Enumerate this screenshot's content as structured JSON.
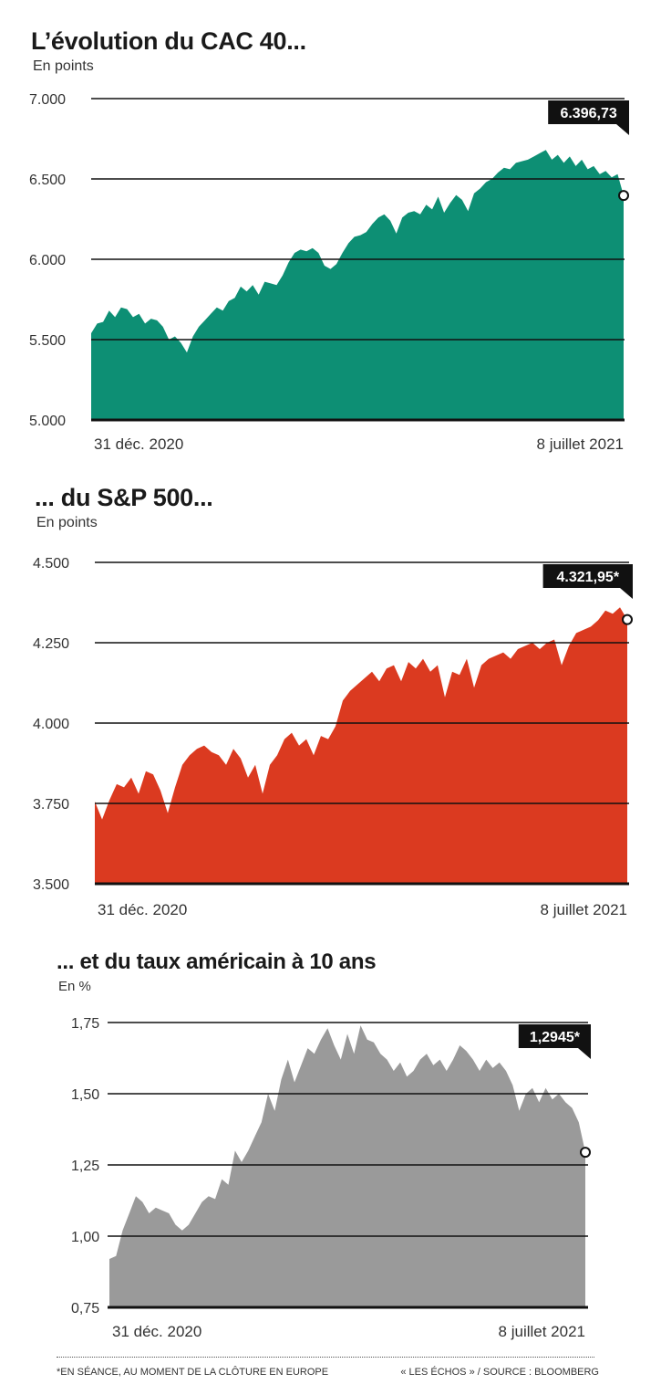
{
  "chart_data": [
    {
      "type": "area",
      "title": "L’évolution du CAC 40...",
      "subtitle": "En points",
      "yticks": [
        "7.000",
        "6.500",
        "6.000",
        "5.500",
        "5.000"
      ],
      "ytick_values": [
        7000,
        6500,
        6000,
        5500,
        5000
      ],
      "ylim": [
        5000,
        7000
      ],
      "x_start_label": "31 déc. 2020",
      "x_end_label": "8 juillet 2021",
      "last_value_label": "6.396,73",
      "last_value": 6396.73,
      "color": "#0d8f74",
      "values": [
        5540,
        5600,
        5610,
        5680,
        5640,
        5700,
        5690,
        5640,
        5660,
        5600,
        5630,
        5620,
        5580,
        5500,
        5520,
        5480,
        5420,
        5520,
        5580,
        5620,
        5660,
        5700,
        5680,
        5740,
        5760,
        5830,
        5800,
        5840,
        5780,
        5860,
        5850,
        5840,
        5900,
        5980,
        6040,
        6060,
        6050,
        6070,
        6040,
        5960,
        5940,
        5970,
        6040,
        6100,
        6140,
        6150,
        6170,
        6220,
        6260,
        6280,
        6240,
        6160,
        6260,
        6290,
        6300,
        6280,
        6340,
        6310,
        6390,
        6290,
        6350,
        6400,
        6370,
        6300,
        6410,
        6440,
        6480,
        6500,
        6540,
        6570,
        6560,
        6600,
        6610,
        6620,
        6640,
        6660,
        6680,
        6620,
        6650,
        6600,
        6640,
        6580,
        6620,
        6560,
        6580,
        6530,
        6550,
        6510,
        6530,
        6396.73
      ]
    },
    {
      "type": "area",
      "title": "... du S&P 500...",
      "subtitle": "En points",
      "yticks": [
        "4.500",
        "4.250",
        "4.000",
        "3.750",
        "3.500"
      ],
      "ytick_values": [
        4500,
        4250,
        4000,
        3750,
        3500
      ],
      "ylim": [
        3500,
        4500
      ],
      "x_start_label": "31 déc. 2020",
      "x_end_label": "8 juillet 2021",
      "last_value_label": "4.321,95*",
      "last_value": 4321.95,
      "color": "#db3a20",
      "values": [
        3756,
        3700,
        3760,
        3810,
        3800,
        3830,
        3780,
        3850,
        3840,
        3790,
        3720,
        3800,
        3870,
        3900,
        3920,
        3930,
        3910,
        3900,
        3870,
        3920,
        3890,
        3830,
        3870,
        3780,
        3870,
        3900,
        3950,
        3970,
        3930,
        3950,
        3900,
        3960,
        3950,
        3990,
        4070,
        4100,
        4120,
        4140,
        4160,
        4130,
        4170,
        4180,
        4130,
        4190,
        4170,
        4200,
        4160,
        4180,
        4080,
        4160,
        4150,
        4200,
        4110,
        4180,
        4200,
        4210,
        4220,
        4200,
        4230,
        4240,
        4250,
        4230,
        4250,
        4260,
        4180,
        4240,
        4280,
        4290,
        4300,
        4320,
        4350,
        4340,
        4360,
        4321.95
      ]
    },
    {
      "type": "area",
      "title": "... et du taux américain à 10 ans",
      "subtitle": "En %",
      "yticks": [
        "1,75",
        "1,50",
        "1,25",
        "1,00",
        "0,75"
      ],
      "ytick_values": [
        1.75,
        1.5,
        1.25,
        1.0,
        0.75
      ],
      "ylim": [
        0.75,
        1.75
      ],
      "x_start_label": "31 déc. 2020",
      "x_end_label": "8 juillet 2021",
      "last_value_label": "1,2945*",
      "last_value": 1.2945,
      "color": "#9a9a9a",
      "values": [
        0.92,
        0.93,
        1.02,
        1.08,
        1.14,
        1.12,
        1.08,
        1.1,
        1.09,
        1.08,
        1.04,
        1.02,
        1.04,
        1.08,
        1.12,
        1.14,
        1.13,
        1.2,
        1.18,
        1.3,
        1.26,
        1.3,
        1.35,
        1.4,
        1.5,
        1.44,
        1.55,
        1.62,
        1.54,
        1.6,
        1.66,
        1.64,
        1.69,
        1.73,
        1.67,
        1.62,
        1.71,
        1.64,
        1.74,
        1.69,
        1.68,
        1.64,
        1.62,
        1.58,
        1.61,
        1.56,
        1.58,
        1.62,
        1.64,
        1.6,
        1.62,
        1.58,
        1.62,
        1.67,
        1.65,
        1.62,
        1.58,
        1.62,
        1.59,
        1.61,
        1.58,
        1.53,
        1.44,
        1.5,
        1.52,
        1.47,
        1.52,
        1.48,
        1.5,
        1.47,
        1.45,
        1.4,
        1.2945
      ]
    }
  ],
  "footer": {
    "note": "*EN SÉANCE, AU MOMENT DE LA CLÔTURE EN EUROPE",
    "source": "« LES ÉCHOS » / SOURCE : BLOOMBERG"
  }
}
